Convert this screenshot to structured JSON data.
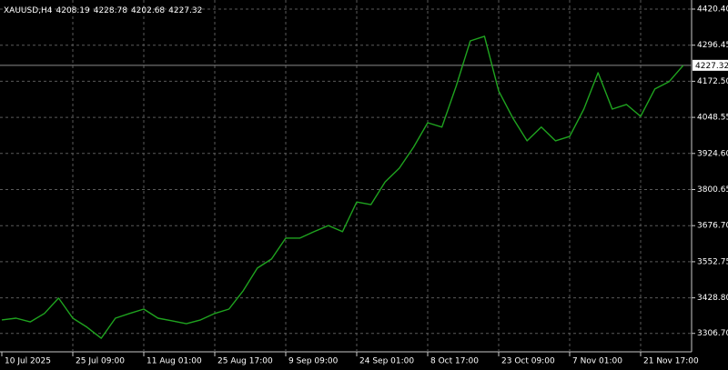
{
  "chart_data": {
    "type": "line",
    "title": "XAUUSD,H4",
    "ohlc": [
      4208.19,
      4228.78,
      4202.68,
      4227.32
    ],
    "last": 4227.32,
    "categories": [
      "10 Jul 2025",
      null,
      null,
      null,
      null,
      "25 Jul 09:00",
      null,
      null,
      null,
      null,
      "11 Aug 01:00",
      null,
      null,
      null,
      null,
      "25 Aug 17:00",
      null,
      null,
      null,
      null,
      "9 Sep 09:00",
      null,
      null,
      null,
      null,
      "24 Sep 01:00",
      null,
      null,
      null,
      null,
      "8 Oct 17:00",
      null,
      null,
      null,
      null,
      "23 Oct 09:00",
      null,
      null,
      null,
      null,
      "7 Nov 01:00",
      null,
      null,
      null,
      null,
      "21 Nov 17:00",
      null,
      null,
      null
    ],
    "series": [
      {
        "name": "XAUUSD",
        "color": "#1fa31f",
        "values": [
          3353,
          3359,
          3346,
          3375,
          3428,
          3359,
          3328,
          3290,
          3359,
          3375,
          3390,
          3359,
          3350,
          3340,
          3353,
          3375,
          3390,
          3453,
          3531,
          3562,
          3634,
          3634,
          3656,
          3677,
          3656,
          3758,
          3749,
          3827,
          3874,
          3946,
          4030,
          4015,
          4155,
          4311,
          4327,
          4139,
          4046,
          3968,
          4015,
          3968,
          3983,
          4077,
          4202,
          4077,
          4093,
          4052,
          4146,
          4171,
          4227
        ]
      }
    ],
    "ylim": [
      3243.4,
      4436.0
    ],
    "yticks": [
      {
        "value": 4420.4,
        "label": "4420.40"
      },
      4296.45,
      {
        "value": 4172.5,
        "label": "4172.50"
      },
      4048.55,
      {
        "value": 3924.6,
        "label": "3924.60"
      },
      3800.65,
      {
        "value": 3676.7,
        "label": "3676.70"
      },
      3552.75,
      {
        "value": 3428.8,
        "label": "3428.80"
      },
      {
        "value": 3306.7,
        "label": "3306.70"
      }
    ],
    "grid": true,
    "axis_side": "right"
  }
}
